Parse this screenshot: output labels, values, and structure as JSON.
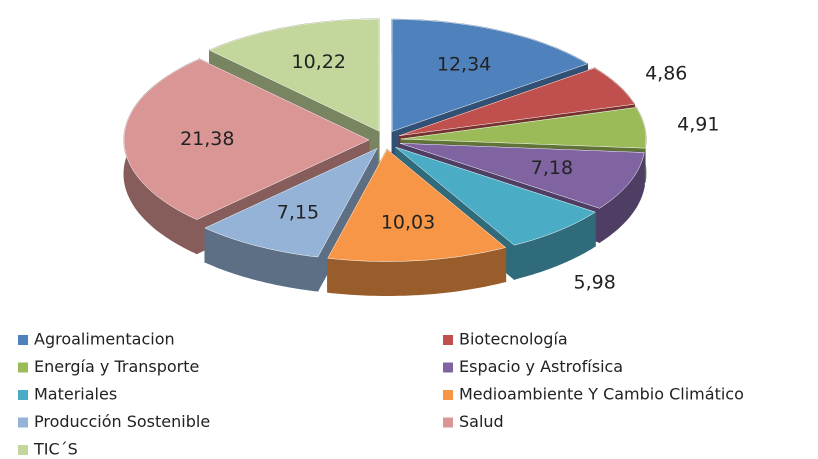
{
  "chart_data": {
    "type": "pie",
    "categories": [
      "Agroalimentacion",
      "Biotecnología",
      "Energía y Transporte",
      "Espacio y Astrofísica",
      "Materiales",
      "Medioambiente Y Cambio Climático",
      "Producción Sostenible",
      "Salud",
      "TIC´S"
    ],
    "values": [
      12.34,
      4.86,
      4.91,
      7.18,
      5.98,
      10.03,
      7.15,
      21.38,
      10.22
    ],
    "value_labels": [
      "12,34",
      "4,86",
      "4,91",
      "7,18",
      "5,98",
      "10,03",
      "7,15",
      "21,38",
      "10,22"
    ],
    "colors": [
      "#4f81bd",
      "#c0504d",
      "#9bbb59",
      "#8064a2",
      "#4bacc6",
      "#f79646",
      "#95b3d7",
      "#d99694",
      "#c3d69b"
    ],
    "legend": "bottom"
  }
}
